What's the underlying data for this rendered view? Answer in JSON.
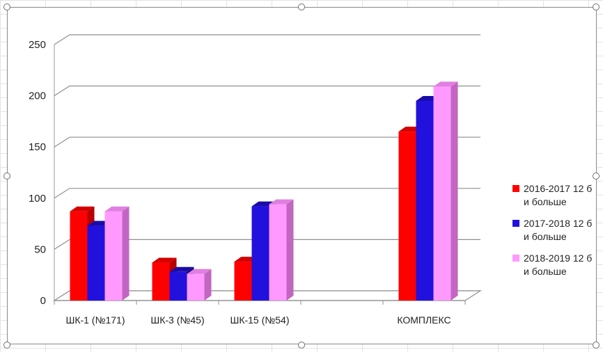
{
  "colors": {
    "series1": "#ff0000",
    "series2": "#2211dd",
    "series3": "#ff99ff"
  },
  "chart_data": {
    "type": "bar",
    "title": "",
    "xlabel": "",
    "ylabel": "",
    "categories": [
      "ШК-1 (№171)",
      "ШК-3 (№45)",
      "ШК-15 (№54)",
      "",
      "КОМПЛЕКС"
    ],
    "series": [
      {
        "name": "2016-2017 12 б и больше",
        "values": [
          87,
          37,
          38,
          null,
          165
        ]
      },
      {
        "name": "2017-2018 12 б и больше",
        "values": [
          73,
          28,
          92,
          null,
          195
        ]
      },
      {
        "name": "2018-2019 12 б и больше",
        "values": [
          87,
          26,
          94,
          null,
          209
        ]
      }
    ],
    "ylim": [
      0,
      250
    ],
    "yticks": [
      0,
      50,
      100,
      150,
      200,
      250
    ],
    "grid": true,
    "legend": "right",
    "style": "3d-clustered"
  }
}
